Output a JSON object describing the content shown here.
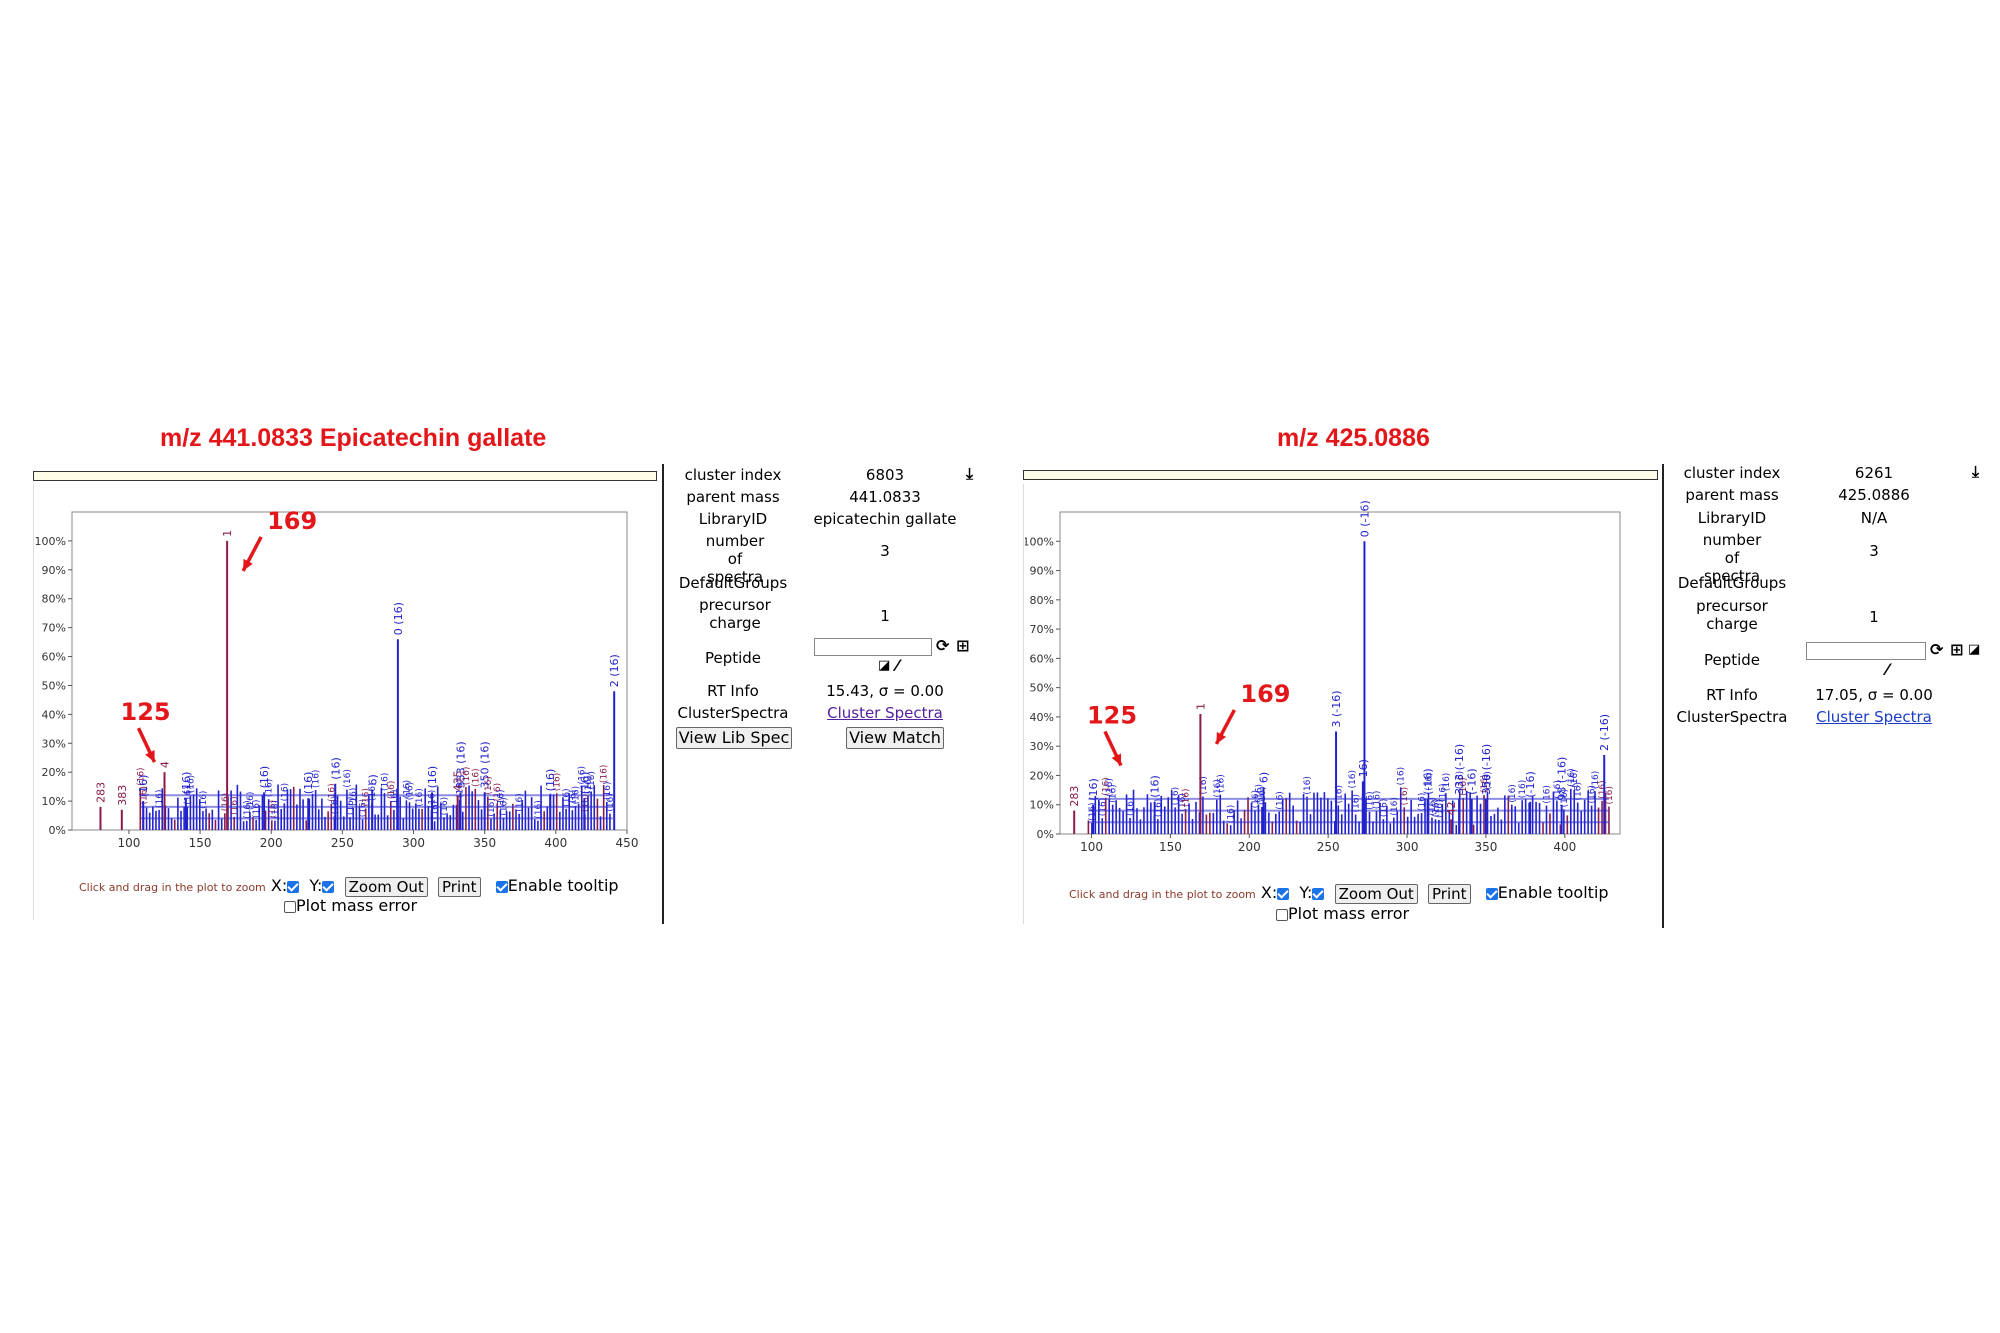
{
  "panels": [
    {
      "title": "m/z 441.0833 Epicatechin gallate",
      "annotations": [
        {
          "label": "169",
          "target_mz": 169
        },
        {
          "label": "125",
          "target_mz": 125
        }
      ],
      "chart_data": {
        "type": "bar",
        "xlim": [
          60,
          450
        ],
        "ylim": [
          0,
          110
        ],
        "x_ticks": [
          100,
          150,
          200,
          250,
          300,
          350,
          400,
          450
        ],
        "y_ticks": [
          0,
          10,
          20,
          30,
          40,
          50,
          60,
          70,
          80,
          90,
          100
        ],
        "y_tick_suffix": "%",
        "peaks": [
          {
            "mz": 169,
            "intensity": 100,
            "label": "1",
            "color": "#8b1a4a"
          },
          {
            "mz": 125,
            "intensity": 20,
            "label": "4",
            "color": "#8b1a4a"
          },
          {
            "mz": 289,
            "intensity": 66,
            "label": "0 (16)",
            "color": "#2222cc"
          },
          {
            "mz": 441,
            "intensity": 48,
            "label": "2 (16)",
            "color": "#2222cc"
          },
          {
            "mz": 245,
            "intensity": 16,
            "label": "(16)",
            "color": "#2222cc"
          },
          {
            "mz": 271,
            "intensity": 14,
            "label": "6)",
            "color": "#2222cc"
          },
          {
            "mz": 313,
            "intensity": 13,
            "label": "(16)",
            "color": "#2222cc"
          },
          {
            "mz": 331,
            "intensity": 12,
            "label": "435",
            "color": "#8b1a4a"
          },
          {
            "mz": 333,
            "intensity": 13,
            "label": "333 (16)",
            "color": "#2222cc"
          },
          {
            "mz": 350,
            "intensity": 13,
            "label": "350 (16)",
            "color": "#2222cc"
          },
          {
            "mz": 396,
            "intensity": 12,
            "label": "(16)",
            "color": "#2222cc"
          },
          {
            "mz": 420,
            "intensity": 11,
            "label": "(16)",
            "color": "#2222cc"
          },
          {
            "mz": 80,
            "intensity": 8,
            "label": "283",
            "color": "#8b1a4a"
          },
          {
            "mz": 95,
            "intensity": 7,
            "label": "383",
            "color": "#8b1a4a"
          },
          {
            "mz": 110,
            "intensity": 10,
            "label": "(16)",
            "color": "#2222cc"
          },
          {
            "mz": 140,
            "intensity": 11,
            "label": "(16)",
            "color": "#2222cc"
          },
          {
            "mz": 195,
            "intensity": 13,
            "label": "(16)",
            "color": "#2222cc"
          },
          {
            "mz": 226,
            "intensity": 11,
            "label": "(16)",
            "color": "#2222cc"
          }
        ],
        "noise_band": {
          "from_mz": 108,
          "to_mz": 440,
          "max_intensity": 16
        }
      },
      "controls": {
        "zoom_hint": "Click and drag in the plot to zoom",
        "x_label": "X:",
        "y_label": "Y:",
        "zoom_out": "Zoom Out",
        "print": "Print",
        "enable_tooltip": "Enable tooltip",
        "plot_mass_error": "Plot mass error"
      },
      "info": {
        "cluster_index_label": "cluster index",
        "cluster_index": "6803",
        "parent_mass_label": "parent mass",
        "parent_mass": "441.0833",
        "library_id_label": "LibraryID",
        "library_id": "epicatechin gallate",
        "num_spectra_label": "number of spectra",
        "num_spectra": "3",
        "default_groups_label": "DefaultGroups",
        "precursor_charge_label": "precursor charge",
        "precursor_charge": "1",
        "peptide_label": "Peptide",
        "rt_info_label": "RT Info",
        "rt_info": "15.43, σ = 0.00",
        "cluster_spectra_label": "ClusterSpectra",
        "cluster_spectra_link": "Cluster Spectra",
        "view_lib_spec": "View Lib Spec",
        "view_match": "View Match"
      }
    },
    {
      "title": "m/z 425.0886",
      "annotations": [
        {
          "label": "169",
          "target_mz": 169
        },
        {
          "label": "125",
          "target_mz": 125
        }
      ],
      "chart_data": {
        "type": "bar",
        "xlim": [
          80,
          435
        ],
        "ylim": [
          0,
          110
        ],
        "x_ticks": [
          100,
          150,
          200,
          250,
          300,
          350,
          400
        ],
        "y_ticks": [
          0,
          10,
          20,
          30,
          40,
          50,
          60,
          70,
          80,
          90,
          100
        ],
        "y_tick_suffix": "%",
        "peaks": [
          {
            "mz": 273,
            "intensity": 100,
            "label": "0 (-16)",
            "color": "#2222cc"
          },
          {
            "mz": 169,
            "intensity": 41,
            "label": "1",
            "color": "#8b1a4a"
          },
          {
            "mz": 255,
            "intensity": 35,
            "label": "3 (-16)",
            "color": "#2222cc"
          },
          {
            "mz": 425,
            "intensity": 27,
            "label": "2 (-16)",
            "color": "#2222cc"
          },
          {
            "mz": 272,
            "intensity": 18,
            "label": "16)",
            "color": "#2222cc"
          },
          {
            "mz": 209,
            "intensity": 16,
            "label": "6)",
            "color": "#2222cc"
          },
          {
            "mz": 313,
            "intensity": 12,
            "label": "(-16)",
            "color": "#2222cc"
          },
          {
            "mz": 341,
            "intensity": 12,
            "label": "(-16)",
            "color": "#2222cc"
          },
          {
            "mz": 333,
            "intensity": 12,
            "label": "333 (-16)",
            "color": "#2222cc"
          },
          {
            "mz": 350,
            "intensity": 12,
            "label": "350 (-16)",
            "color": "#2222cc"
          },
          {
            "mz": 328,
            "intensity": 5,
            "label": "42",
            "color": "#8b1a4a"
          },
          {
            "mz": 378,
            "intensity": 11,
            "label": "(-16)",
            "color": "#2222cc"
          },
          {
            "mz": 398,
            "intensity": 10,
            "label": "98 (-16)",
            "color": "#2222cc"
          },
          {
            "mz": 89,
            "intensity": 8,
            "label": "283",
            "color": "#8b1a4a"
          },
          {
            "mz": 101,
            "intensity": 10,
            "label": "(16)",
            "color": "#2222cc"
          },
          {
            "mz": 140,
            "intensity": 11,
            "label": "(16)",
            "color": "#2222cc"
          }
        ],
        "noise_band": {
          "from_mz": 98,
          "to_mz": 428,
          "max_intensity": 16
        }
      },
      "controls": {
        "zoom_hint": "Click and drag in the plot to zoom",
        "x_label": "X:",
        "y_label": "Y:",
        "zoom_out": "Zoom Out",
        "print": "Print",
        "enable_tooltip": "Enable tooltip",
        "plot_mass_error": "Plot mass error"
      },
      "info": {
        "cluster_index_label": "cluster index",
        "cluster_index": "6261",
        "parent_mass_label": "parent mass",
        "parent_mass": "425.0886",
        "library_id_label": "LibraryID",
        "library_id": "N/A",
        "num_spectra_label": "number of spectra",
        "num_spectra": "3",
        "default_groups_label": "DefaultGroups",
        "precursor_charge_label": "precursor charge",
        "precursor_charge": "1",
        "peptide_label": "Peptide",
        "rt_info_label": "RT Info",
        "rt_info": "17.05, σ = 0.00",
        "cluster_spectra_label": "ClusterSpectra",
        "cluster_spectra_link": "Cluster Spectra"
      }
    }
  ],
  "icons": {
    "download": "download-icon",
    "refresh": "refresh-icon",
    "plus": "plus-icon",
    "share": "share-icon",
    "wand": "magic-wand-icon"
  },
  "colors": {
    "annotation_red": "#e3161a",
    "peak_blue": "#2222cc",
    "peak_maroon": "#8b1a4a",
    "checkbox_blue": "#1a73e8"
  }
}
